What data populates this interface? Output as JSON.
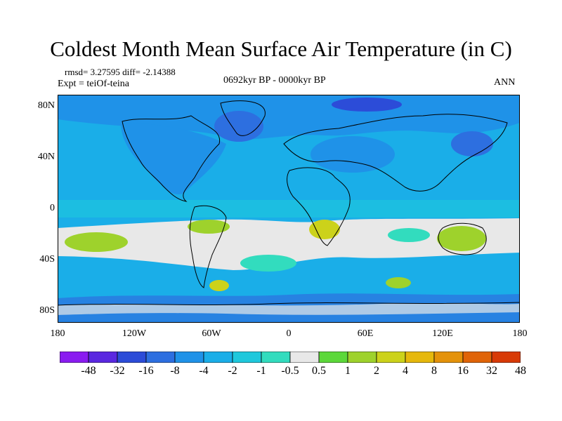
{
  "title": "Coldest Month Mean Surface Air Temperature (in C)",
  "stats": {
    "rmsd_diff": "rmsd= 3.27595 diff= -2.14388",
    "expt": "Expt = teiOf-teina",
    "period": "0692kyr BP - 0000kyr BP",
    "season": "ANN"
  },
  "axes": {
    "y_ticks": [
      "80N",
      "40N",
      "0",
      "40S",
      "80S"
    ],
    "x_ticks": [
      "180",
      "120W",
      "60W",
      "0",
      "60E",
      "120E",
      "180"
    ]
  },
  "colorbar": {
    "colors": [
      "#8a1cf0",
      "#5a28e0",
      "#2c4cd8",
      "#2d6fe0",
      "#1f92e8",
      "#1aaee8",
      "#1ec8dc",
      "#32dcbe",
      "#e8e8e8",
      "#5cd83a",
      "#9ed22c",
      "#ccd21a",
      "#e6b80c",
      "#e4920a",
      "#e06408",
      "#d83a06"
    ],
    "labels": [
      "-48",
      "-32",
      "-16",
      "-8",
      "-4",
      "-2",
      "-1",
      "-0.5",
      "0.5",
      "1",
      "2",
      "4",
      "8",
      "16",
      "32",
      "48"
    ]
  },
  "map_colors": {
    "ocean": "#1aaee8",
    "land_base": "#1f92e8",
    "near_zero": "#e8e8e8",
    "cold_blue": "#2c4cd8",
    "cyan": "#1ec8dc",
    "aqua": "#32dcbe",
    "green": "#5cd83a",
    "lime": "#9ed22c",
    "yellow": "#ccd21a"
  }
}
